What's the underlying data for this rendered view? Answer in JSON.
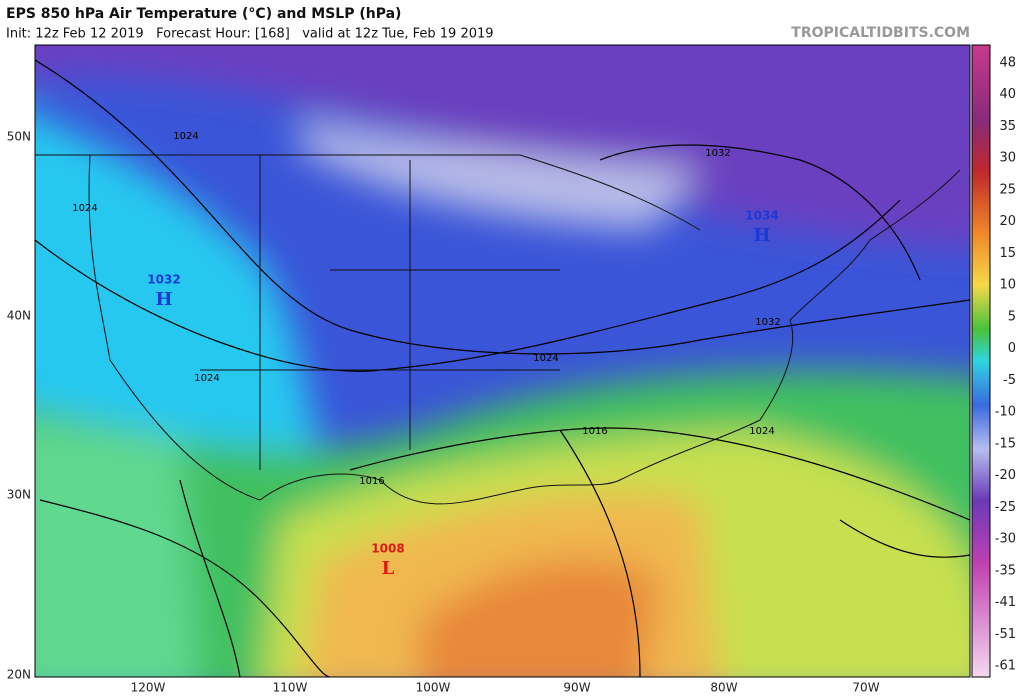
{
  "header": {
    "title": "EPS 850 hPa Air Temperature (°C) and MSLP (hPa)",
    "subtitle": "Init: 12z Feb 12 2019   Forecast Hour: [168]   valid at 12z Tue, Feb 19 2019",
    "site": "TROPICALTIDBITS.COM"
  },
  "map": {
    "lat_labels": [
      "50N",
      "40N",
      "30N",
      "20N"
    ],
    "lon_labels": [
      "120W",
      "110W",
      "100W",
      "90W",
      "80W",
      "70W"
    ],
    "isobar_labels": [
      "1024",
      "1024",
      "1024",
      "1024",
      "1024",
      "1032",
      "1032",
      "1016",
      "1016"
    ],
    "centers": [
      {
        "value": "1034",
        "symbol": "H"
      },
      {
        "value": "1032",
        "symbol": "H"
      },
      {
        "value": "1008",
        "symbol": "L"
      }
    ]
  },
  "colorbar": {
    "labels": [
      48,
      40,
      35,
      30,
      25,
      20,
      15,
      10,
      5,
      0,
      -5,
      -10,
      -15,
      -20,
      -25,
      -30,
      -35,
      -41,
      -51,
      -61
    ]
  }
}
